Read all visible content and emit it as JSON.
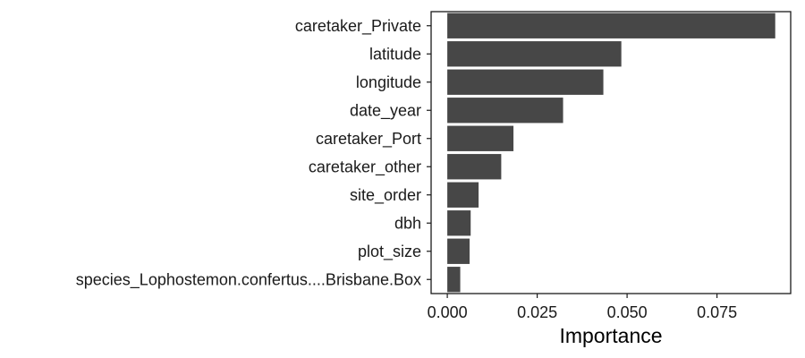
{
  "chart_data": {
    "type": "bar",
    "orientation": "horizontal",
    "categories": [
      "caretaker_Private",
      "latitude",
      "longitude",
      "date_year",
      "caretaker_Port",
      "caretaker_other",
      "site_order",
      "dbh",
      "plot_size",
      "species_Lophostemon.confertus....Brisbane.Box"
    ],
    "values": [
      0.0912,
      0.0484,
      0.0434,
      0.0322,
      0.0184,
      0.015,
      0.0087,
      0.0065,
      0.0062,
      0.0036
    ],
    "title": "",
    "xlabel": "Importance",
    "ylabel": "",
    "xlim": [
      -0.0045,
      0.0955
    ],
    "xticks": [
      0.0,
      0.025,
      0.05,
      0.075
    ],
    "xtick_labels": [
      "0.000",
      "0.025",
      "0.050",
      "0.075"
    ],
    "grid": false,
    "bar_color": "#474747",
    "frame_color": "#1a1a1a"
  }
}
